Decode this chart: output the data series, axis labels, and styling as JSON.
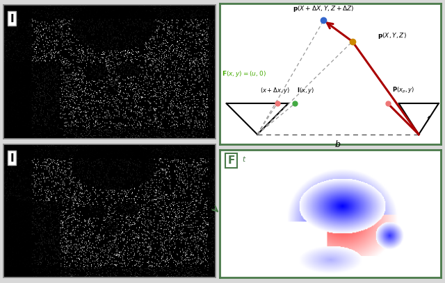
{
  "fig_width": 6.4,
  "fig_height": 4.08,
  "bg_color": "#d8d8d8",
  "panel_bg": "#ffffff",
  "border_color": "#888888",
  "green_border": "#4a7a4a",
  "green_text_color": "#44aa00",
  "arrow_color": "#cc0000",
  "p1_color": "#3366cc",
  "p2_color": "#cc8800",
  "cam_sensor_color": "#44aa44",
  "proj_sensor_color": "#cc4444",
  "dashed_line_color": "#999999"
}
